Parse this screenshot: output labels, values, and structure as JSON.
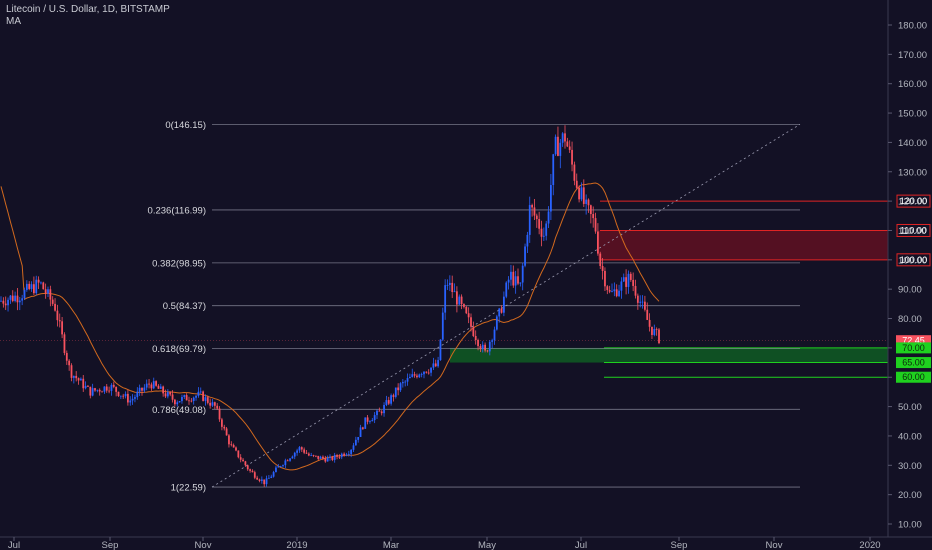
{
  "chart_data": {
    "type": "candlestick",
    "title": "Litecoin / U.S. Dollar, 1D, BITSTAMP",
    "indicator_label": "MA",
    "last_price": 72.45,
    "y_axis_ticks": [
      10,
      20,
      30,
      40,
      50,
      60,
      70,
      80,
      90,
      100,
      110,
      120,
      130,
      140,
      150,
      160,
      170,
      180
    ],
    "y_axis_labels": [
      "10.00",
      "20.00",
      "30.00",
      "40.00",
      "50.00",
      "60.00",
      "70.00",
      "80.00",
      "90.00",
      "100.00",
      "110.00",
      "120.00",
      "130.00",
      "140.00",
      "150.00",
      "160.00",
      "170.00",
      "180.00"
    ],
    "x_axis_labels": [
      "Jul",
      "Sep",
      "Nov",
      "2019",
      "Mar",
      "May",
      "Jul",
      "Sep",
      "Nov",
      "2020"
    ],
    "fib_levels": [
      {
        "label": "0(146.15)",
        "value": 146.15
      },
      {
        "label": "0.236(116.99)",
        "value": 116.99
      },
      {
        "label": "0.382(98.95)",
        "value": 98.95
      },
      {
        "label": "0.5(84.37)",
        "value": 84.37
      },
      {
        "label": "0.618(69.79)",
        "value": 69.79
      },
      {
        "label": "0.786(49.08)",
        "value": 49.08
      },
      {
        "label": "1(22.59)",
        "value": 22.59
      }
    ],
    "price_labels": [
      {
        "label": "120.00",
        "value": 120,
        "color": "#e02424"
      },
      {
        "label": "110.00",
        "value": 110,
        "color": "#e02424"
      },
      {
        "label": "100.00",
        "value": 100,
        "color": "#e02424"
      },
      {
        "label": "72.45",
        "value": 72.45,
        "color": "#f7525f"
      },
      {
        "label": "70.00",
        "value": 70,
        "color": "#1fd11f"
      },
      {
        "label": "65.00",
        "value": 65,
        "color": "#1fd11f"
      },
      {
        "label": "60.00",
        "value": 60,
        "color": "#1fd11f"
      }
    ],
    "resistance_zone": [
      100,
      110
    ],
    "support_zone": [
      65,
      70
    ],
    "colors": {
      "up": "#2962ff",
      "down": "#f7525f",
      "ma": "#d2691e",
      "resistance": "#e02424",
      "support": "#1fd11f"
    }
  }
}
